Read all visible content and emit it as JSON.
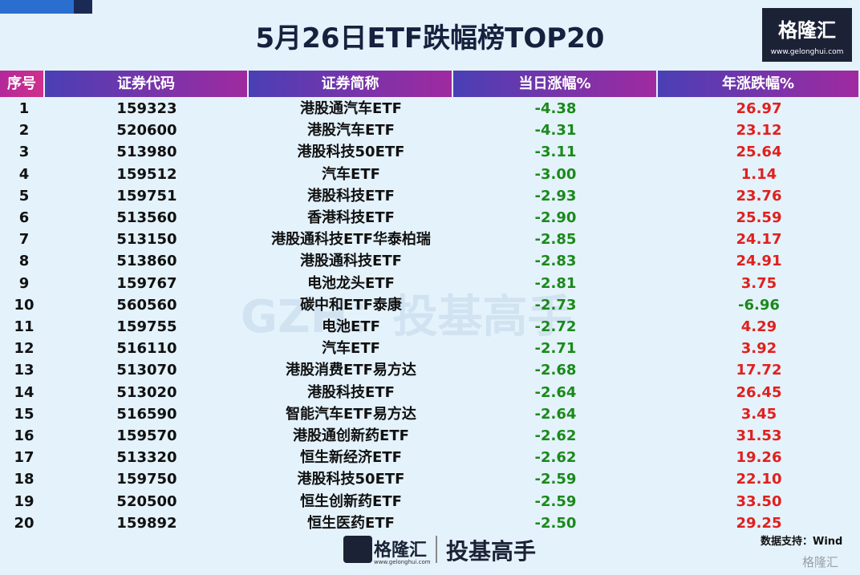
{
  "header": {
    "title": "5月26日ETF跌幅榜TOP20",
    "logo": "格隆汇",
    "logo_url": "www.gelonghui.com"
  },
  "table": {
    "columns": [
      "序号",
      "证券代码",
      "证券简称",
      "当日涨幅%",
      "年涨跌幅%"
    ],
    "rows": [
      [
        "1",
        "159323",
        "港股通汽车ETF",
        "-4.38",
        "26.97"
      ],
      [
        "2",
        "520600",
        "港股汽车ETF",
        "-4.31",
        "23.12"
      ],
      [
        "3",
        "513980",
        "港股科技50ETF",
        "-3.11",
        "25.64"
      ],
      [
        "4",
        "159512",
        "汽车ETF",
        "-3.00",
        "1.14"
      ],
      [
        "5",
        "159751",
        "港股科技ETF",
        "-2.93",
        "23.76"
      ],
      [
        "6",
        "513560",
        "香港科技ETF",
        "-2.90",
        "25.59"
      ],
      [
        "7",
        "513150",
        "港股通科技ETF华泰柏瑞",
        "-2.85",
        "24.17"
      ],
      [
        "8",
        "513860",
        "港股通科技ETF",
        "-2.83",
        "24.91"
      ],
      [
        "9",
        "159767",
        "电池龙头ETF",
        "-2.81",
        "3.75"
      ],
      [
        "10",
        "560560",
        "碳中和ETF泰康",
        "-2.73",
        "-6.96"
      ],
      [
        "11",
        "159755",
        "电池ETF",
        "-2.72",
        "4.29"
      ],
      [
        "12",
        "516110",
        "汽车ETF",
        "-2.71",
        "3.92"
      ],
      [
        "13",
        "513070",
        "港股消费ETF易方达",
        "-2.68",
        "17.72"
      ],
      [
        "14",
        "513020",
        "港股科技ETF",
        "-2.64",
        "26.45"
      ],
      [
        "15",
        "516590",
        "智能汽车ETF易方达",
        "-2.64",
        "3.45"
      ],
      [
        "16",
        "159570",
        "港股通创新药ETF",
        "-2.62",
        "31.53"
      ],
      [
        "17",
        "513320",
        "恒生新经济ETF",
        "-2.62",
        "19.26"
      ],
      [
        "18",
        "159750",
        "港股科技50ETF",
        "-2.59",
        "22.10"
      ],
      [
        "19",
        "520500",
        "恒生创新药ETF",
        "-2.59",
        "33.50"
      ],
      [
        "20",
        "159892",
        "恒生医药ETF",
        "-2.50",
        "29.25"
      ]
    ]
  },
  "watermark": "GZH：投基高手",
  "footer": {
    "source": "数据支持：Wind",
    "logo": "格隆汇",
    "logo_url": "www.gelonghui.com",
    "slogan": "投基高手",
    "corner": "格隆汇"
  }
}
